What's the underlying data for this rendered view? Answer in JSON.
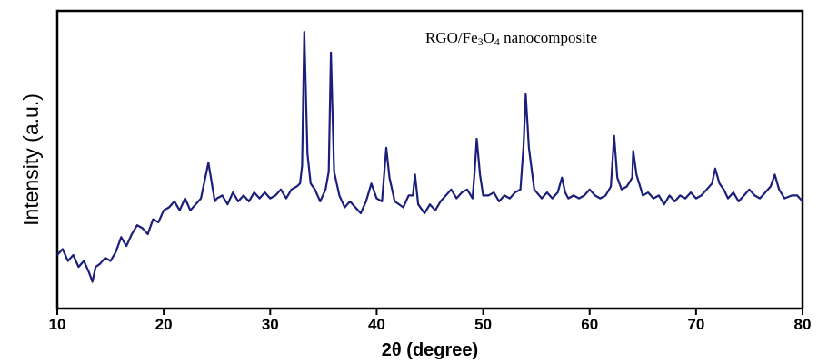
{
  "chart_data": {
    "type": "line",
    "title": "",
    "annotation": {
      "prefix": "RGO/Fe",
      "sub1": "3",
      "mid": "O",
      "sub2": "4",
      "suffix": " nanocomposite"
    },
    "xlabel": "2θ (degree)",
    "ylabel": "Intensity (a.u.)",
    "xlim": [
      10,
      80
    ],
    "ylim": [
      0,
      100
    ],
    "xticks": [
      10,
      20,
      30,
      40,
      50,
      60,
      70,
      80
    ],
    "y_tick_labels": "none",
    "grid": false,
    "legend": "none",
    "series": [
      {
        "color": "#1b1f7a",
        "points": [
          [
            10,
            18
          ],
          [
            10.5,
            20
          ],
          [
            11,
            16
          ],
          [
            11.5,
            18
          ],
          [
            12,
            14
          ],
          [
            12.5,
            16
          ],
          [
            13,
            12
          ],
          [
            13.3,
            9
          ],
          [
            13.6,
            14
          ],
          [
            14,
            15
          ],
          [
            14.5,
            17
          ],
          [
            15,
            16
          ],
          [
            15.5,
            19
          ],
          [
            16,
            24
          ],
          [
            16.5,
            21
          ],
          [
            17,
            25
          ],
          [
            17.5,
            28
          ],
          [
            18,
            27
          ],
          [
            18.5,
            25
          ],
          [
            19,
            30
          ],
          [
            19.5,
            29
          ],
          [
            20,
            33
          ],
          [
            20.5,
            34
          ],
          [
            21,
            36
          ],
          [
            21.5,
            33
          ],
          [
            22,
            37
          ],
          [
            22.5,
            33
          ],
          [
            23,
            35
          ],
          [
            23.5,
            37
          ],
          [
            24.2,
            49
          ],
          [
            24.8,
            36
          ],
          [
            25,
            37
          ],
          [
            25.5,
            38
          ],
          [
            26,
            35
          ],
          [
            26.5,
            39
          ],
          [
            27,
            36
          ],
          [
            27.5,
            38
          ],
          [
            28,
            36
          ],
          [
            28.5,
            39
          ],
          [
            29,
            37
          ],
          [
            29.5,
            39
          ],
          [
            30,
            37
          ],
          [
            30.5,
            38
          ],
          [
            31,
            40
          ],
          [
            31.5,
            37
          ],
          [
            32,
            40
          ],
          [
            32.5,
            41
          ],
          [
            32.8,
            42
          ],
          [
            33,
            48
          ],
          [
            33.2,
            93
          ],
          [
            33.5,
            52
          ],
          [
            33.8,
            42
          ],
          [
            34.2,
            40
          ],
          [
            34.7,
            36
          ],
          [
            35.2,
            40
          ],
          [
            35.5,
            46
          ],
          [
            35.7,
            86
          ],
          [
            36,
            46
          ],
          [
            36.5,
            38
          ],
          [
            37,
            34
          ],
          [
            37.5,
            36
          ],
          [
            38,
            34
          ],
          [
            38.5,
            32
          ],
          [
            39,
            36
          ],
          [
            39.5,
            42
          ],
          [
            40,
            37
          ],
          [
            40.5,
            36
          ],
          [
            40.9,
            54
          ],
          [
            41.2,
            44
          ],
          [
            41.7,
            36
          ],
          [
            42.5,
            34
          ],
          [
            43,
            38
          ],
          [
            43.4,
            38
          ],
          [
            43.6,
            45
          ],
          [
            43.9,
            35
          ],
          [
            44.5,
            32
          ],
          [
            45,
            35
          ],
          [
            45.5,
            33
          ],
          [
            46,
            36
          ],
          [
            46.5,
            38
          ],
          [
            47,
            40
          ],
          [
            47.5,
            37
          ],
          [
            48,
            39
          ],
          [
            48.5,
            40
          ],
          [
            49,
            37
          ],
          [
            49.2,
            46
          ],
          [
            49.4,
            57
          ],
          [
            49.7,
            45
          ],
          [
            50,
            38
          ],
          [
            50.5,
            38
          ],
          [
            51,
            39
          ],
          [
            51.5,
            36
          ],
          [
            52,
            38
          ],
          [
            52.5,
            37
          ],
          [
            53,
            39
          ],
          [
            53.5,
            40
          ],
          [
            53.8,
            55
          ],
          [
            54,
            72
          ],
          [
            54.3,
            54
          ],
          [
            54.8,
            40
          ],
          [
            55.5,
            37
          ],
          [
            56,
            39
          ],
          [
            56.5,
            37
          ],
          [
            57,
            39
          ],
          [
            57.4,
            44
          ],
          [
            57.7,
            39
          ],
          [
            58,
            37
          ],
          [
            58.5,
            38
          ],
          [
            59,
            37
          ],
          [
            59.5,
            38
          ],
          [
            60,
            40
          ],
          [
            60.5,
            38
          ],
          [
            61,
            37
          ],
          [
            61.5,
            38
          ],
          [
            62,
            41
          ],
          [
            62.3,
            58
          ],
          [
            62.6,
            44
          ],
          [
            63,
            40
          ],
          [
            63.5,
            41
          ],
          [
            64,
            44
          ],
          [
            64.1,
            53
          ],
          [
            64.4,
            45
          ],
          [
            65,
            38
          ],
          [
            65.5,
            39
          ],
          [
            66,
            37
          ],
          [
            66.5,
            38
          ],
          [
            67,
            35
          ],
          [
            67.5,
            38
          ],
          [
            68,
            36
          ],
          [
            68.5,
            38
          ],
          [
            69,
            37
          ],
          [
            69.5,
            39
          ],
          [
            70,
            37
          ],
          [
            70.5,
            38
          ],
          [
            71,
            40
          ],
          [
            71.5,
            42
          ],
          [
            71.8,
            47
          ],
          [
            72.2,
            42
          ],
          [
            72.6,
            40
          ],
          [
            73,
            37
          ],
          [
            73.5,
            39
          ],
          [
            74,
            36
          ],
          [
            74.5,
            38
          ],
          [
            75,
            40
          ],
          [
            75.5,
            38
          ],
          [
            76,
            37
          ],
          [
            76.5,
            39
          ],
          [
            77,
            41
          ],
          [
            77.4,
            45
          ],
          [
            77.8,
            40
          ],
          [
            78.3,
            37
          ],
          [
            79,
            38
          ],
          [
            79.5,
            38
          ],
          [
            80,
            36
          ]
        ]
      }
    ]
  }
}
